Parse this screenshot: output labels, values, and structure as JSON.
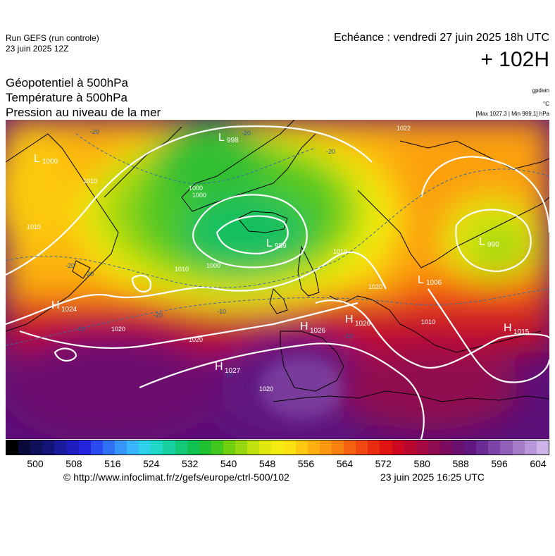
{
  "header": {
    "run_label": "Run GEFS (run controle)",
    "run_date": "23 juin 2025 12Z",
    "echeance": "Echéance : vendredi 27 juin 2025 18h UTC",
    "lead_time": "+ 102H"
  },
  "titles": {
    "line1": "Géopotentiel à 500hPa",
    "line2": "Température à 500hPa",
    "line3": "Pression au niveau de la mer"
  },
  "units": {
    "gpdam": "gpdam",
    "celsius": "°C",
    "pressure_range": "[Max 1027.3 | Min 989.1] hPa"
  },
  "pressure_centers": [
    {
      "type": "L",
      "value": "1000"
    },
    {
      "type": "L",
      "value": "998"
    },
    {
      "type": "L",
      "value": "989"
    },
    {
      "type": "L",
      "value": "990"
    },
    {
      "type": "L",
      "value": "1006"
    },
    {
      "type": "H",
      "value": "1024"
    },
    {
      "type": "H",
      "value": "1026"
    },
    {
      "type": "H",
      "value": "1026"
    },
    {
      "type": "H",
      "value": "1027"
    },
    {
      "type": "H",
      "value": "1015"
    }
  ],
  "isobar_labels": [
    "1010",
    "1000",
    "1010",
    "1000",
    "1020",
    "1020",
    "1020",
    "1010",
    "1010",
    "1020",
    "1022",
    "1000",
    "1010"
  ],
  "temp_labels": [
    "-20",
    "-20",
    "-20",
    "-20",
    "-20",
    "-10",
    "-10",
    "-10",
    "-20",
    "-10"
  ],
  "colorbar": {
    "ticks": [
      "500",
      "508",
      "516",
      "524",
      "532",
      "540",
      "548",
      "556",
      "564",
      "572",
      "580",
      "588",
      "596",
      "604"
    ],
    "colors": [
      "#000000",
      "#0a0a3a",
      "#0f0f5a",
      "#141478",
      "#1a1a9c",
      "#1e1ebe",
      "#2323dc",
      "#2b4bf0",
      "#3070f5",
      "#3595f8",
      "#39b5fb",
      "#2fd0ea",
      "#20d8c8",
      "#18d0a0",
      "#14c878",
      "#10c050",
      "#20c030",
      "#40c820",
      "#70d010",
      "#98d810",
      "#c0e010",
      "#e0e810",
      "#f4ec10",
      "#fce010",
      "#fcc810",
      "#fcb010",
      "#fc9810",
      "#f88010",
      "#f46410",
      "#f04810",
      "#e82c10",
      "#e01410",
      "#cc0820",
      "#b80830",
      "#a40840",
      "#900c50",
      "#7c0c60",
      "#6c1070",
      "#601880",
      "#6a2c94",
      "#7c44a8",
      "#9060b8",
      "#a47cc8",
      "#b898d8",
      "#ccb4e8"
    ]
  },
  "footer": {
    "source": "© http://www.infoclimat.fr/z/gefs/europe/ctrl-500/102",
    "generated": "23 juin 2025 16:25 UTC"
  }
}
